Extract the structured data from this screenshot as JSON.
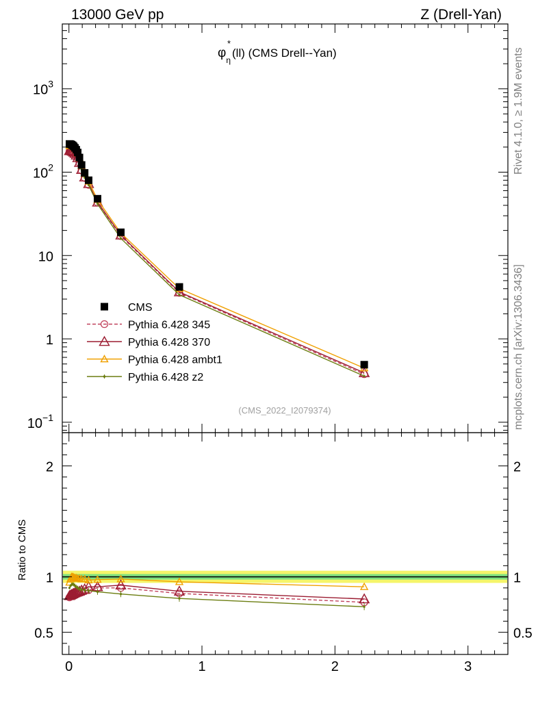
{
  "header": {
    "left": "13000 GeV pp",
    "right": "Z (Drell-Yan)"
  },
  "side_text": {
    "top": "Rivet 4.1.0, ≥ 1.9M events",
    "bottom": "mcplots.cern.ch [arXiv:1306.3436]"
  },
  "chart_data": {
    "type": "line",
    "title_symbol": "φ",
    "title_sup": "*",
    "title_sub": "η",
    "title_rest": "(ll) (CMS Drell--Yan)",
    "watermark": "(CMS_2022_I2079374)",
    "ylabel_ratio": "Ratio to CMS",
    "xlim": [
      -0.05,
      3.3
    ],
    "ylim_main": [
      0.075,
      6000
    ],
    "ylim_ratio": [
      0.3,
      2.3
    ],
    "main_ytick_labels": [
      {
        "value": 1000,
        "base": "10",
        "exp": "3"
      },
      {
        "value": 100,
        "base": "10",
        "exp": "2"
      },
      {
        "value": 10,
        "base": "10",
        "exp": ""
      },
      {
        "value": 1,
        "base": "1",
        "exp": ""
      },
      {
        "value": 0.1,
        "base": "10",
        "exp": "−1"
      }
    ],
    "ratio_ytick_labels": [
      {
        "value": 0.5,
        "text": "0.5"
      },
      {
        "value": 1,
        "text": "1"
      },
      {
        "value": 2,
        "text": "2"
      }
    ],
    "x_tick_labels": [
      {
        "value": 0,
        "text": "0"
      },
      {
        "value": 1,
        "text": "1"
      },
      {
        "value": 2,
        "text": "2"
      },
      {
        "value": 3,
        "text": "3"
      }
    ],
    "x": [
      0.004,
      0.012,
      0.02,
      0.028,
      0.036,
      0.045,
      0.055,
      0.066,
      0.079,
      0.095,
      0.118,
      0.148,
      0.215,
      0.39,
      0.83,
      2.22
    ],
    "cms": [
      218,
      217,
      214,
      210,
      204,
      196,
      186,
      172,
      150,
      122,
      98,
      80,
      48,
      19,
      4.2,
      0.49
    ],
    "series": [
      {
        "name": "Pythia 6.428 345",
        "color": "#c0405a",
        "dash": true,
        "marker": "circle",
        "ratio": [
          0.815,
          0.82,
          0.83,
          0.83,
          0.835,
          0.84,
          0.845,
          0.85,
          0.86,
          0.86,
          0.87,
          0.88,
          0.9,
          0.9,
          0.85,
          0.77
        ]
      },
      {
        "name": "Pythia 6.428 370",
        "color": "#9b1c31",
        "dash": false,
        "marker": "triangle",
        "ratio": [
          0.83,
          0.835,
          0.84,
          0.845,
          0.85,
          0.855,
          0.86,
          0.865,
          0.87,
          0.88,
          0.89,
          0.91,
          0.91,
          0.925,
          0.87,
          0.8
        ]
      },
      {
        "name": "Pythia 6.428 ambt1",
        "color": "#f0a000",
        "dash": false,
        "marker": "triangle-small",
        "ratio": [
          0.95,
          0.98,
          1.0,
          1.0,
          0.995,
          0.99,
          0.99,
          0.985,
          0.985,
          0.98,
          0.98,
          0.97,
          0.975,
          0.98,
          0.955,
          0.91
        ]
      },
      {
        "name": "Pythia 6.428 z2",
        "color": "#6b7d10",
        "dash": false,
        "marker": "dot",
        "ratio": [
          0.9,
          0.92,
          0.93,
          0.935,
          0.93,
          0.92,
          0.91,
          0.9,
          0.89,
          0.885,
          0.88,
          0.875,
          0.865,
          0.845,
          0.805,
          0.73
        ]
      }
    ],
    "legend": {
      "position": "lower-left",
      "data_label": "CMS"
    }
  },
  "colors": {
    "band_yellow": "#f5f56a",
    "band_green": "#7fe07f",
    "reference": "#000000"
  }
}
